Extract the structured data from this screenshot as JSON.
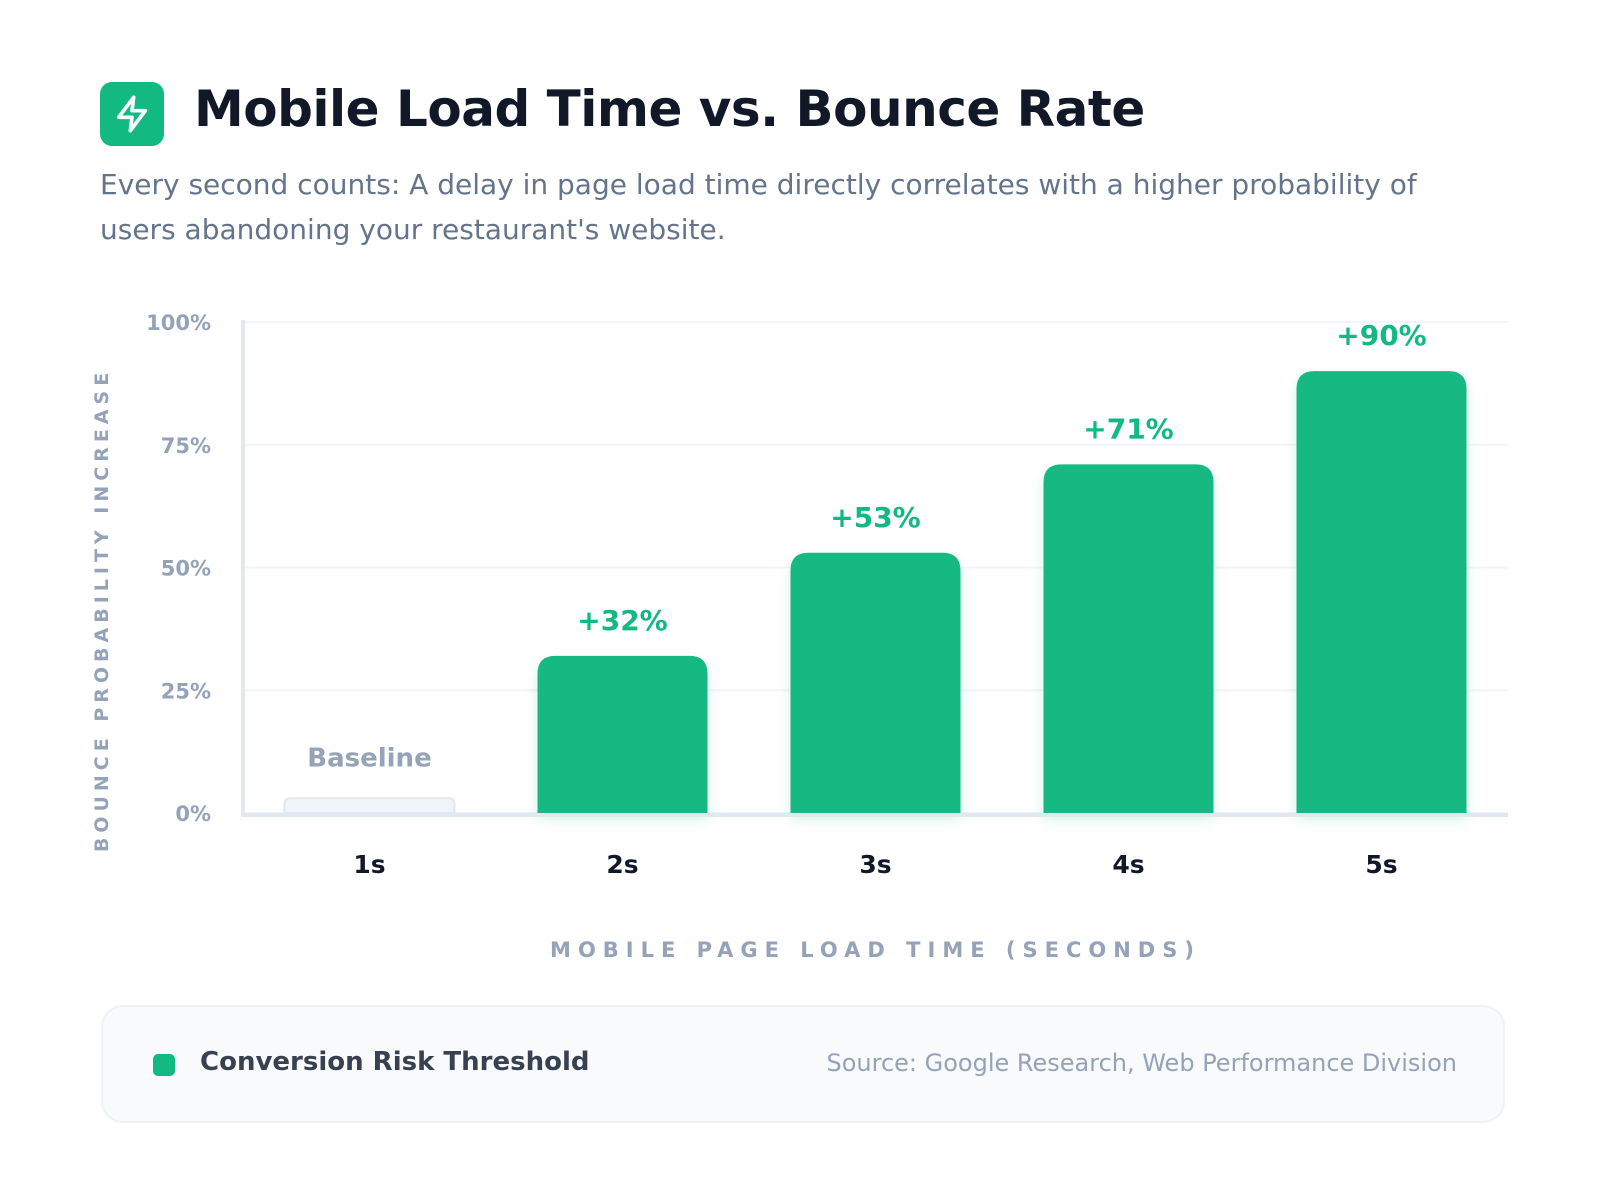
{
  "header": {
    "icon": "lightning-bolt-icon",
    "title": "Mobile Load Time vs. Bounce Rate",
    "subtitle": "Every second counts: A delay in page load time directly correlates with a higher probability of users abandoning your restaurant's website."
  },
  "colors": {
    "accent": "#12b981",
    "baseline_bar": "#f1f5f9",
    "grid": "#f1f5f9",
    "axis": "#e2e8f0",
    "muted_text": "#94a3b8"
  },
  "chart_data": {
    "type": "bar",
    "categories": [
      "1s",
      "2s",
      "3s",
      "4s",
      "5s"
    ],
    "values": [
      3,
      32,
      53,
      71,
      90
    ],
    "data_labels": [
      "Baseline",
      "+32%",
      "+53%",
      "+71%",
      "+90%"
    ],
    "xlabel": "MOBILE PAGE LOAD TIME (SECONDS)",
    "ylabel": "BOUNCE PROBABILITY INCREASE",
    "ylim": [
      0,
      100
    ],
    "yticks": [
      0,
      25,
      50,
      75,
      100
    ],
    "ytick_labels": [
      "0%",
      "25%",
      "50%",
      "75%",
      "100%"
    ],
    "grid": true
  },
  "legend": {
    "label": "Conversion Risk Threshold",
    "source": "Source: Google Research, Web Performance Division"
  }
}
